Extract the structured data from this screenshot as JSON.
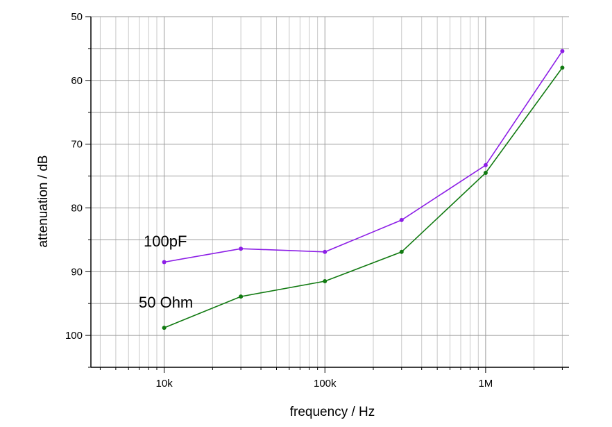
{
  "chart_data": {
    "type": "line",
    "xlabel": "frequency / Hz",
    "ylabel": "attenuation / dB",
    "xscale": "log",
    "xlim": [
      3500,
      3300000
    ],
    "ylim": [
      105,
      50
    ],
    "y_inverted": true,
    "grid": true,
    "x_ticks": [
      {
        "value": 10000,
        "label": "10k"
      },
      {
        "value": 100000,
        "label": "100k"
      },
      {
        "value": 1000000,
        "label": "1M"
      }
    ],
    "y_ticks": [
      {
        "value": 50,
        "label": "50"
      },
      {
        "value": 60,
        "label": "60"
      },
      {
        "value": 70,
        "label": "70"
      },
      {
        "value": 80,
        "label": "80"
      },
      {
        "value": 90,
        "label": "90"
      },
      {
        "value": 100,
        "label": "100"
      }
    ],
    "series": [
      {
        "name": "100pF",
        "color": "#8c1ee6",
        "x": [
          10000,
          30000,
          100000,
          300000,
          1000000,
          3000000
        ],
        "y": [
          88.5,
          86.4,
          86.9,
          81.9,
          73.3,
          55.4
        ]
      },
      {
        "name": "50 Ohm",
        "color": "#117a11",
        "x": [
          10000,
          30000,
          100000,
          300000,
          1000000,
          3000000
        ],
        "y": [
          98.8,
          93.9,
          91.5,
          86.9,
          74.5,
          58.0
        ]
      }
    ]
  }
}
